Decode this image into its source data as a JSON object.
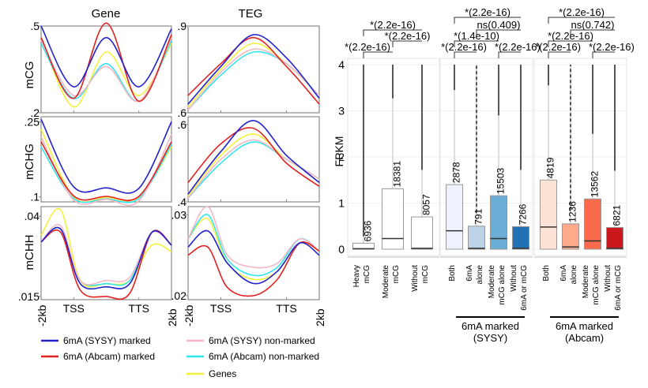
{
  "colors": {
    "sysy_marked": "#2222cc",
    "abcam_marked": "#e22222",
    "sysy_nonmarked": "#f4b8c4",
    "abcam_nonmarked": "#33e6ee",
    "genes": "#f4f040",
    "frame": "#888888"
  },
  "legend": [
    {
      "label": "6mA (SYSY) marked",
      "color_key": "sysy_marked"
    },
    {
      "label": "6mA (Abcam) marked",
      "color_key": "abcam_marked"
    },
    {
      "label": "6mA (SYSY) non-marked",
      "color_key": "sysy_nonmarked"
    },
    {
      "label": "6mA (Abcam) non-marked",
      "color_key": "abcam_nonmarked"
    },
    {
      "label": "Genes",
      "color_key": "genes"
    }
  ],
  "chart_data": [
    {
      "type": "line",
      "title": "Gene",
      "ylabel": "mCG",
      "ylim": [
        0.2,
        0.5
      ],
      "yticks": [
        ".5",
        ".2"
      ],
      "x": [
        0,
        0.25,
        0.5,
        0.75,
        1
      ],
      "xlabels": [
        "-2kb",
        "TSS",
        "",
        "TTS",
        "2kb"
      ],
      "series": [
        {
          "name": "6mA (SYSY) marked",
          "color_key": "sysy_marked",
          "values": [
            0.5,
            0.29,
            0.46,
            0.29,
            0.49
          ]
        },
        {
          "name": "6mA (Abcam) marked",
          "color_key": "abcam_marked",
          "values": [
            0.46,
            0.25,
            0.51,
            0.24,
            0.47
          ]
        },
        {
          "name": "6mA (SYSY) non-marked",
          "color_key": "sysy_nonmarked",
          "values": [
            0.45,
            0.26,
            0.36,
            0.24,
            0.46
          ]
        },
        {
          "name": "6mA (Abcam) non-marked",
          "color_key": "abcam_nonmarked",
          "values": [
            0.44,
            0.25,
            0.37,
            0.24,
            0.45
          ]
        },
        {
          "name": "Genes",
          "color_key": "genes",
          "values": [
            0.46,
            0.22,
            0.41,
            0.26,
            0.44
          ]
        }
      ]
    },
    {
      "type": "line",
      "title": "TEG",
      "ylabel": "",
      "ylim": [
        0.6,
        0.9
      ],
      "yticks": [
        ".9",
        ".6"
      ],
      "x": [
        0,
        0.25,
        0.5,
        0.75,
        1
      ],
      "xlabels": [
        "-2kb",
        "TSS",
        "",
        "TTS",
        "2kb"
      ],
      "series": [
        {
          "name": "6mA (SYSY) marked",
          "color_key": "sysy_marked",
          "values": [
            0.63,
            0.76,
            0.87,
            0.79,
            0.65
          ]
        },
        {
          "name": "6mA (Abcam) marked",
          "color_key": "abcam_marked",
          "values": [
            0.66,
            0.77,
            0.86,
            0.76,
            0.63
          ]
        },
        {
          "name": "6mA (SYSY) non-marked",
          "color_key": "sysy_nonmarked",
          "values": [
            0.61,
            0.74,
            0.82,
            0.77,
            0.66
          ]
        },
        {
          "name": "6mA (Abcam) non-marked",
          "color_key": "abcam_nonmarked",
          "values": [
            0.61,
            0.73,
            0.81,
            0.77,
            0.66
          ]
        },
        {
          "name": "Genes",
          "color_key": "genes",
          "values": [
            0.62,
            0.75,
            0.84,
            0.77,
            0.66
          ]
        }
      ]
    },
    {
      "type": "line",
      "title": "",
      "ylabel": "mCHG",
      "ylim": [
        0.09,
        0.26
      ],
      "yticks": [
        ".25",
        ".1"
      ],
      "x": [
        0,
        0.25,
        0.5,
        0.75,
        1
      ],
      "xlabels": [
        "-2kb",
        "TSS",
        "",
        "TTS",
        "2kb"
      ],
      "series": [
        {
          "name": "6mA (SYSY) marked",
          "color_key": "sysy_marked",
          "values": [
            0.255,
            0.12,
            0.118,
            0.117,
            0.25
          ]
        },
        {
          "name": "6mA (Abcam) marked",
          "color_key": "abcam_marked",
          "values": [
            0.21,
            0.102,
            0.101,
            0.101,
            0.21
          ]
        },
        {
          "name": "6mA (SYSY) non-marked",
          "color_key": "sysy_nonmarked",
          "values": [
            0.22,
            0.094,
            0.095,
            0.092,
            0.225
          ]
        },
        {
          "name": "6mA (Abcam) non-marked",
          "color_key": "abcam_nonmarked",
          "values": [
            0.2,
            0.097,
            0.096,
            0.097,
            0.205
          ]
        },
        {
          "name": "Genes",
          "color_key": "genes",
          "values": [
            0.235,
            0.1,
            0.099,
            0.1,
            0.2
          ]
        }
      ]
    },
    {
      "type": "line",
      "title": "",
      "ylabel": "",
      "ylim": [
        0.4,
        0.62
      ],
      "yticks": [
        ".6",
        ".4"
      ],
      "x": [
        0,
        0.25,
        0.5,
        0.75,
        1
      ],
      "xlabels": [
        "-2kb",
        "TSS",
        "",
        "TTS",
        "2kb"
      ],
      "series": [
        {
          "name": "6mA (SYSY) marked",
          "color_key": "sysy_marked",
          "values": [
            0.42,
            0.53,
            0.61,
            0.52,
            0.45
          ]
        },
        {
          "name": "6mA (Abcam) marked",
          "color_key": "abcam_marked",
          "values": [
            0.45,
            0.55,
            0.59,
            0.5,
            0.44
          ]
        },
        {
          "name": "6mA (SYSY) non-marked",
          "color_key": "sysy_nonmarked",
          "values": [
            0.41,
            0.51,
            0.56,
            0.51,
            0.46
          ]
        },
        {
          "name": "6mA (Abcam) non-marked",
          "color_key": "abcam_nonmarked",
          "values": [
            0.41,
            0.5,
            0.555,
            0.51,
            0.46
          ]
        },
        {
          "name": "Genes",
          "color_key": "genes",
          "values": [
            0.415,
            0.52,
            0.575,
            0.51,
            0.46
          ]
        }
      ]
    },
    {
      "type": "line",
      "title": "",
      "ylabel": "mCHH",
      "ylim": [
        0.014,
        0.043
      ],
      "yticks": [
        ".04",
        ".015"
      ],
      "x": [
        0,
        0.15,
        0.3,
        0.5,
        0.68,
        0.85,
        1
      ],
      "xlabels": [
        "-2kb",
        "TSS",
        "",
        "TTS",
        "2kb"
      ],
      "series": [
        {
          "name": "6mA (SYSY) marked",
          "color_key": "sysy_marked",
          "values": [
            0.032,
            0.036,
            0.019,
            0.018,
            0.019,
            0.035,
            0.031
          ]
        },
        {
          "name": "6mA (Abcam) marked",
          "color_key": "abcam_marked",
          "values": [
            0.032,
            0.035,
            0.017,
            0.015,
            0.016,
            0.035,
            0.031
          ]
        },
        {
          "name": "6mA (SYSY) non-marked",
          "color_key": "sysy_nonmarked",
          "values": [
            0.032,
            0.037,
            0.02,
            0.02,
            0.021,
            0.035,
            0.031
          ]
        },
        {
          "name": "6mA (Abcam) non-marked",
          "color_key": "abcam_nonmarked",
          "values": [
            0.032,
            0.036,
            0.02,
            0.019,
            0.02,
            0.035,
            0.031
          ]
        },
        {
          "name": "Genes",
          "color_key": "genes",
          "values": [
            0.034,
            0.042,
            0.02,
            0.019,
            0.02,
            0.031,
            0.029
          ]
        }
      ]
    },
    {
      "type": "line",
      "title": "",
      "ylabel": "",
      "ylim": [
        0.0195,
        0.031
      ],
      "yticks": [
        ".03",
        ".02"
      ],
      "x": [
        0,
        0.15,
        0.3,
        0.5,
        0.68,
        0.85,
        1
      ],
      "xlabels": [
        "-2kb",
        "TSS",
        "",
        "TTS",
        "2kb"
      ],
      "series": [
        {
          "name": "6mA (SYSY) marked",
          "color_key": "sysy_marked",
          "values": [
            0.026,
            0.028,
            0.024,
            0.0215,
            0.023,
            0.0265,
            0.025
          ]
        },
        {
          "name": "6mA (Abcam) marked",
          "color_key": "abcam_marked",
          "values": [
            0.025,
            0.026,
            0.021,
            0.02,
            0.022,
            0.0265,
            0.0255
          ]
        },
        {
          "name": "6mA (SYSY) non-marked",
          "color_key": "sysy_nonmarked",
          "values": [
            0.027,
            0.031,
            0.025,
            0.0235,
            0.024,
            0.027,
            0.0255
          ]
        },
        {
          "name": "6mA (Abcam) non-marked",
          "color_key": "abcam_nonmarked",
          "values": [
            0.027,
            0.03,
            0.0245,
            0.0225,
            0.0235,
            0.027,
            0.0255
          ]
        },
        {
          "name": "Genes",
          "color_key": "genes",
          "values": [
            0.027,
            0.0295,
            0.024,
            0.022,
            0.023,
            0.0265,
            0.0255
          ]
        }
      ]
    },
    {
      "type": "box",
      "ylabel": "FPKM",
      "ylim": [
        -0.2,
        4.2
      ],
      "yticks": [
        "0",
        "1",
        "2",
        "3",
        "4"
      ],
      "groups": [
        {
          "group_label": "",
          "boxes": [
            {
              "label": [
                "Heavy",
                "mCG"
              ],
              "n": "6936",
              "q1": 0,
              "median": 0.01,
              "q3": 0.13,
              "whisker_top": 4,
              "whisker_solid_from": 0.28,
              "fill": "#ffffff",
              "dashed": false
            },
            {
              "label": [
                "Moderate",
                "mCG"
              ],
              "n": "18381",
              "q1": 0,
              "median": 0.23,
              "q3": 1.31,
              "whisker_top": 4,
              "whisker_solid_from": 3.27,
              "fill": "#ffffff",
              "dashed": false
            },
            {
              "label": [
                "Without",
                "mCG"
              ],
              "n": "8057",
              "q1": 0,
              "median": 0.02,
              "q3": 0.7,
              "whisker_top": 4,
              "whisker_solid_from": 1.72,
              "fill": "#ffffff",
              "dashed": false
            }
          ],
          "annotations": [
            {
              "text": "*(2.2e-16)",
              "from": 0,
              "to": 1,
              "level": 0
            },
            {
              "text": "*(2.2e-16)",
              "from": 1,
              "to": 2,
              "level": 1
            },
            {
              "text": "*(2.2e-16)",
              "from": 0,
              "to": 2,
              "level": 2
            }
          ]
        },
        {
          "group_label": [
            "6mA marked",
            "(SYSY)"
          ],
          "boxes": [
            {
              "label": [
                "Both"
              ],
              "n": "2878",
              "q1": 0,
              "median": 0.4,
              "q3": 1.4,
              "whisker_top": 4,
              "whisker_solid_from": 3.45,
              "fill": "#eef2fc",
              "dashed": false
            },
            {
              "label": [
                "6mA",
                "alone"
              ],
              "n": "791",
              "q1": 0,
              "median": 0.02,
              "q3": 0.5,
              "whisker_top": 4,
              "whisker_solid_from": 0,
              "fill": "#bcd4e6",
              "dashed": true
            },
            {
              "label": [
                "Moderate",
                "mCG alone"
              ],
              "n": "15503",
              "q1": 0,
              "median": 0.23,
              "q3": 1.16,
              "whisker_top": 4,
              "whisker_solid_from": 2.9,
              "fill": "#6aaed6",
              "dashed": false
            },
            {
              "label": [
                "Without",
                "6mA or mCG"
              ],
              "n": "7266",
              "q1": 0,
              "median": 0.02,
              "q3": 0.49,
              "whisker_top": 4,
              "whisker_solid_from": 1.72,
              "fill": "#2171b5",
              "dashed": false
            }
          ],
          "annotations": [
            {
              "text": "*(2.2e-16)",
              "from": 0,
              "to": 1,
              "level": 0
            },
            {
              "text": "*(2.2e-16)",
              "from": 2,
              "to": 3,
              "level": 0
            },
            {
              "text": "*(1.4e-10)",
              "from": 0,
              "to": 2,
              "level": 1
            },
            {
              "text": "ns(0.409)",
              "from": 1,
              "to": 3,
              "level": 2
            },
            {
              "text": "*(2.2e-16)",
              "from": 0,
              "to": 3,
              "level": 3
            }
          ]
        },
        {
          "group_label": [
            "6mA marked",
            "(Abcam)"
          ],
          "boxes": [
            {
              "label": [
                "Both"
              ],
              "n": "4819",
              "q1": 0,
              "median": 0.48,
              "q3": 1.5,
              "whisker_top": 4,
              "whisker_solid_from": 3.55,
              "fill": "#fde3d6",
              "dashed": false
            },
            {
              "label": [
                "6mA",
                "alone"
              ],
              "n": "1236",
              "q1": 0,
              "median": 0.05,
              "q3": 0.55,
              "whisker_top": 4,
              "whisker_solid_from": 0,
              "fill": "#fcaa8a",
              "dashed": true
            },
            {
              "label": [
                "Moderate",
                "mCG alone"
              ],
              "n": "13562",
              "q1": 0,
              "median": 0.18,
              "q3": 1.09,
              "whisker_top": 4,
              "whisker_solid_from": 2.5,
              "fill": "#fb6a4a",
              "dashed": false
            },
            {
              "label": [
                "Without",
                "6mA or mCG"
              ],
              "n": "6821",
              "q1": 0,
              "median": 0.02,
              "q3": 0.47,
              "whisker_top": 4,
              "whisker_solid_from": 1.7,
              "fill": "#cb181d",
              "dashed": false
            }
          ],
          "annotations": [
            {
              "text": "*(2.2e-16)",
              "from": 0,
              "to": 1,
              "level": 0
            },
            {
              "text": "*(2.2e-16)",
              "from": 2,
              "to": 3,
              "level": 0
            },
            {
              "text": "*(2.2e-16)",
              "from": 0,
              "to": 2,
              "level": 1
            },
            {
              "text": "ns(0.742)",
              "from": 1,
              "to": 3,
              "level": 2
            },
            {
              "text": "*(2.2e-16)",
              "from": 0,
              "to": 3,
              "level": 3
            }
          ]
        }
      ]
    }
  ]
}
